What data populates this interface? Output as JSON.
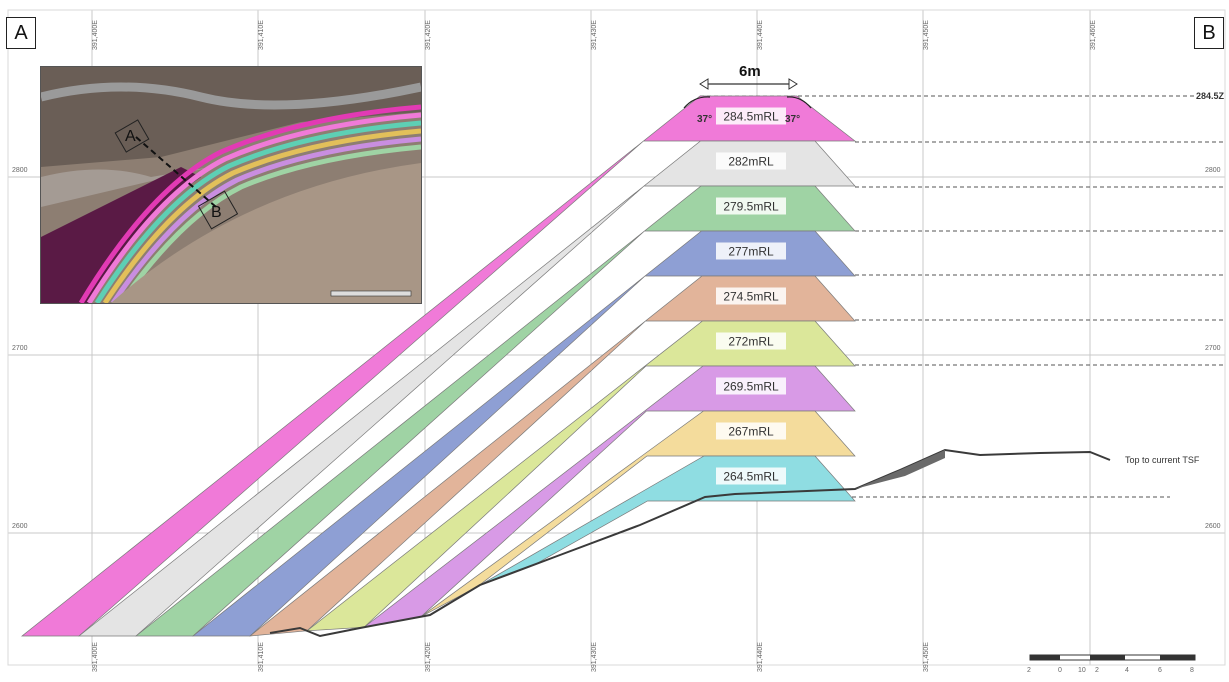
{
  "section": {
    "label_a": "A",
    "label_b": "B",
    "crest_width": "6m",
    "angle_left": "37°",
    "angle_right": "37°",
    "crest_rl_right": "284.5Z",
    "existing_tsf_label": "Top to current TSF"
  },
  "lifts": [
    {
      "label": "284.5mRL",
      "color": "#f07ad8"
    },
    {
      "label": "282mRL",
      "color": "#e4e4e4"
    },
    {
      "label": "279.5mRL",
      "color": "#9fd3a4"
    },
    {
      "label": "277mRL",
      "color": "#8e9fd4"
    },
    {
      "label": "274.5mRL",
      "color": "#e2b49a"
    },
    {
      "label": "272mRL",
      "color": "#dbe79a"
    },
    {
      "label": "269.5mRL",
      "color": "#d89ae6"
    },
    {
      "label": "267mRL",
      "color": "#f4dc9c"
    },
    {
      "label": "264.5mRL",
      "color": "#8fdde2"
    }
  ],
  "grid": {
    "top_labels": [
      "391,400E",
      "391,410E",
      "391,420E",
      "391,430E",
      "391,440E",
      "391,450E",
      "391,460E"
    ],
    "bottom_labels": [
      "391,400E",
      "391,410E",
      "391,420E",
      "391,430E",
      "391,440E",
      "391,450E",
      "391,460E"
    ],
    "left_labels": [
      "2800",
      "2700",
      "2600"
    ],
    "right_labels": [
      "2800",
      "2700",
      "2600"
    ]
  },
  "inset": {
    "label_a": "A",
    "label_b": "B"
  },
  "scale_bar": {
    "ticks": [
      "2",
      "0",
      "10",
      "2",
      "4",
      "6",
      "8"
    ]
  }
}
